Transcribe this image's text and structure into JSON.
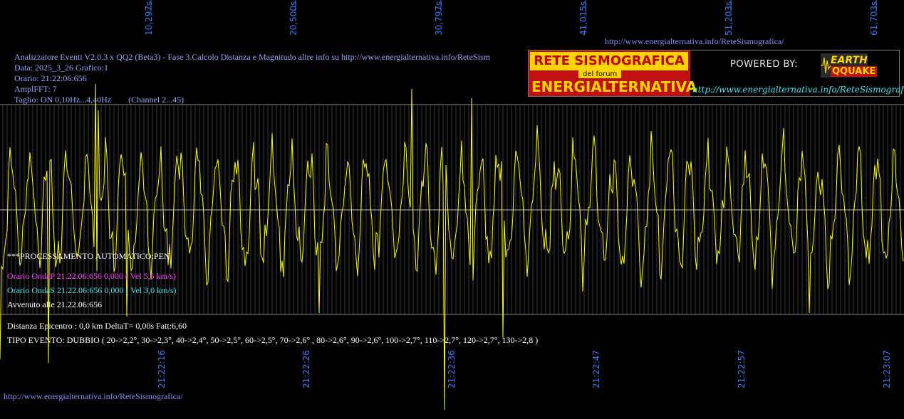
{
  "top_time_ticks": [
    "10,297s",
    "20,500s",
    "30,797s",
    "41,015s",
    "51,203s",
    "61,703s"
  ],
  "bottom_clock_ticks": [
    "21:22:16",
    "21:22:26",
    "21:22:36",
    "21:22:47",
    "21:22:57",
    "21:23:07"
  ],
  "top_url": "http://www.energialternativa.info/ReteSismografica/",
  "header": {
    "line1": "Analizzatore Eventi V2.0.3 x QQ2 (Beta3) - Fase 3.Calcolo Distanza e Magnitudo altre info su http://www.energialternativa.info/ReteSism",
    "line2": "Data: 2025_3_26 Grafico:1",
    "line3": "Orario: 21:22:06:656",
    "line4": "AmplFFT: 7",
    "line5": "Taglio: ON 0,10Hz...4,40Hz        (Channel 2...45)"
  },
  "banner": {
    "title_top": "RETE SISMOGRAFICA",
    "title_mid": "del forum",
    "title_bot": "ENERGIALTERNATIVA",
    "powered_by": "POWERED BY:",
    "logo_earth": "EARTH",
    "logo_quake": "QQUAKE",
    "link": "http://www.energialternativa.info/ReteSismografica"
  },
  "processing": {
    "auto": "***PROCESSAMENTO AUTOMATICO:PEN",
    "onda_p": "Orario OndaP 21.22.06:656  0,000 ( Vel 5,5 km/s)",
    "onda_s": "Orario OndaS 21.22.06:656  0,000 ( Vel 3,0 km/s)",
    "avvenuto": "Avvenuto alle 21.22.06:656",
    "distanza": "Distanza Epicentro : 0,0 km DeltaT= 0,00s  Fatt:6,60",
    "tipo_evento": "TIPO EVENTO: DUBBIO ( 20->2,2°, 30->2,3°, 40->2,4°, 50->2,5°, 60->2,5°, 70->2,6° , 80->2,6°, 90->2,6°, 100->2,7°, 110->2,7°, 120->2,7°, 130->2,8 )"
  },
  "bottom_url": "http://www.energialternativa.info/ReteSismografica/",
  "colors": {
    "background": "#000000",
    "trace": "#ffff00",
    "grid": "#7a7a7a",
    "ticks": "#2f7bff",
    "header_text": "#9aa6ff",
    "onda_p": "#ff3cff",
    "onda_s": "#40e8f0"
  }
}
